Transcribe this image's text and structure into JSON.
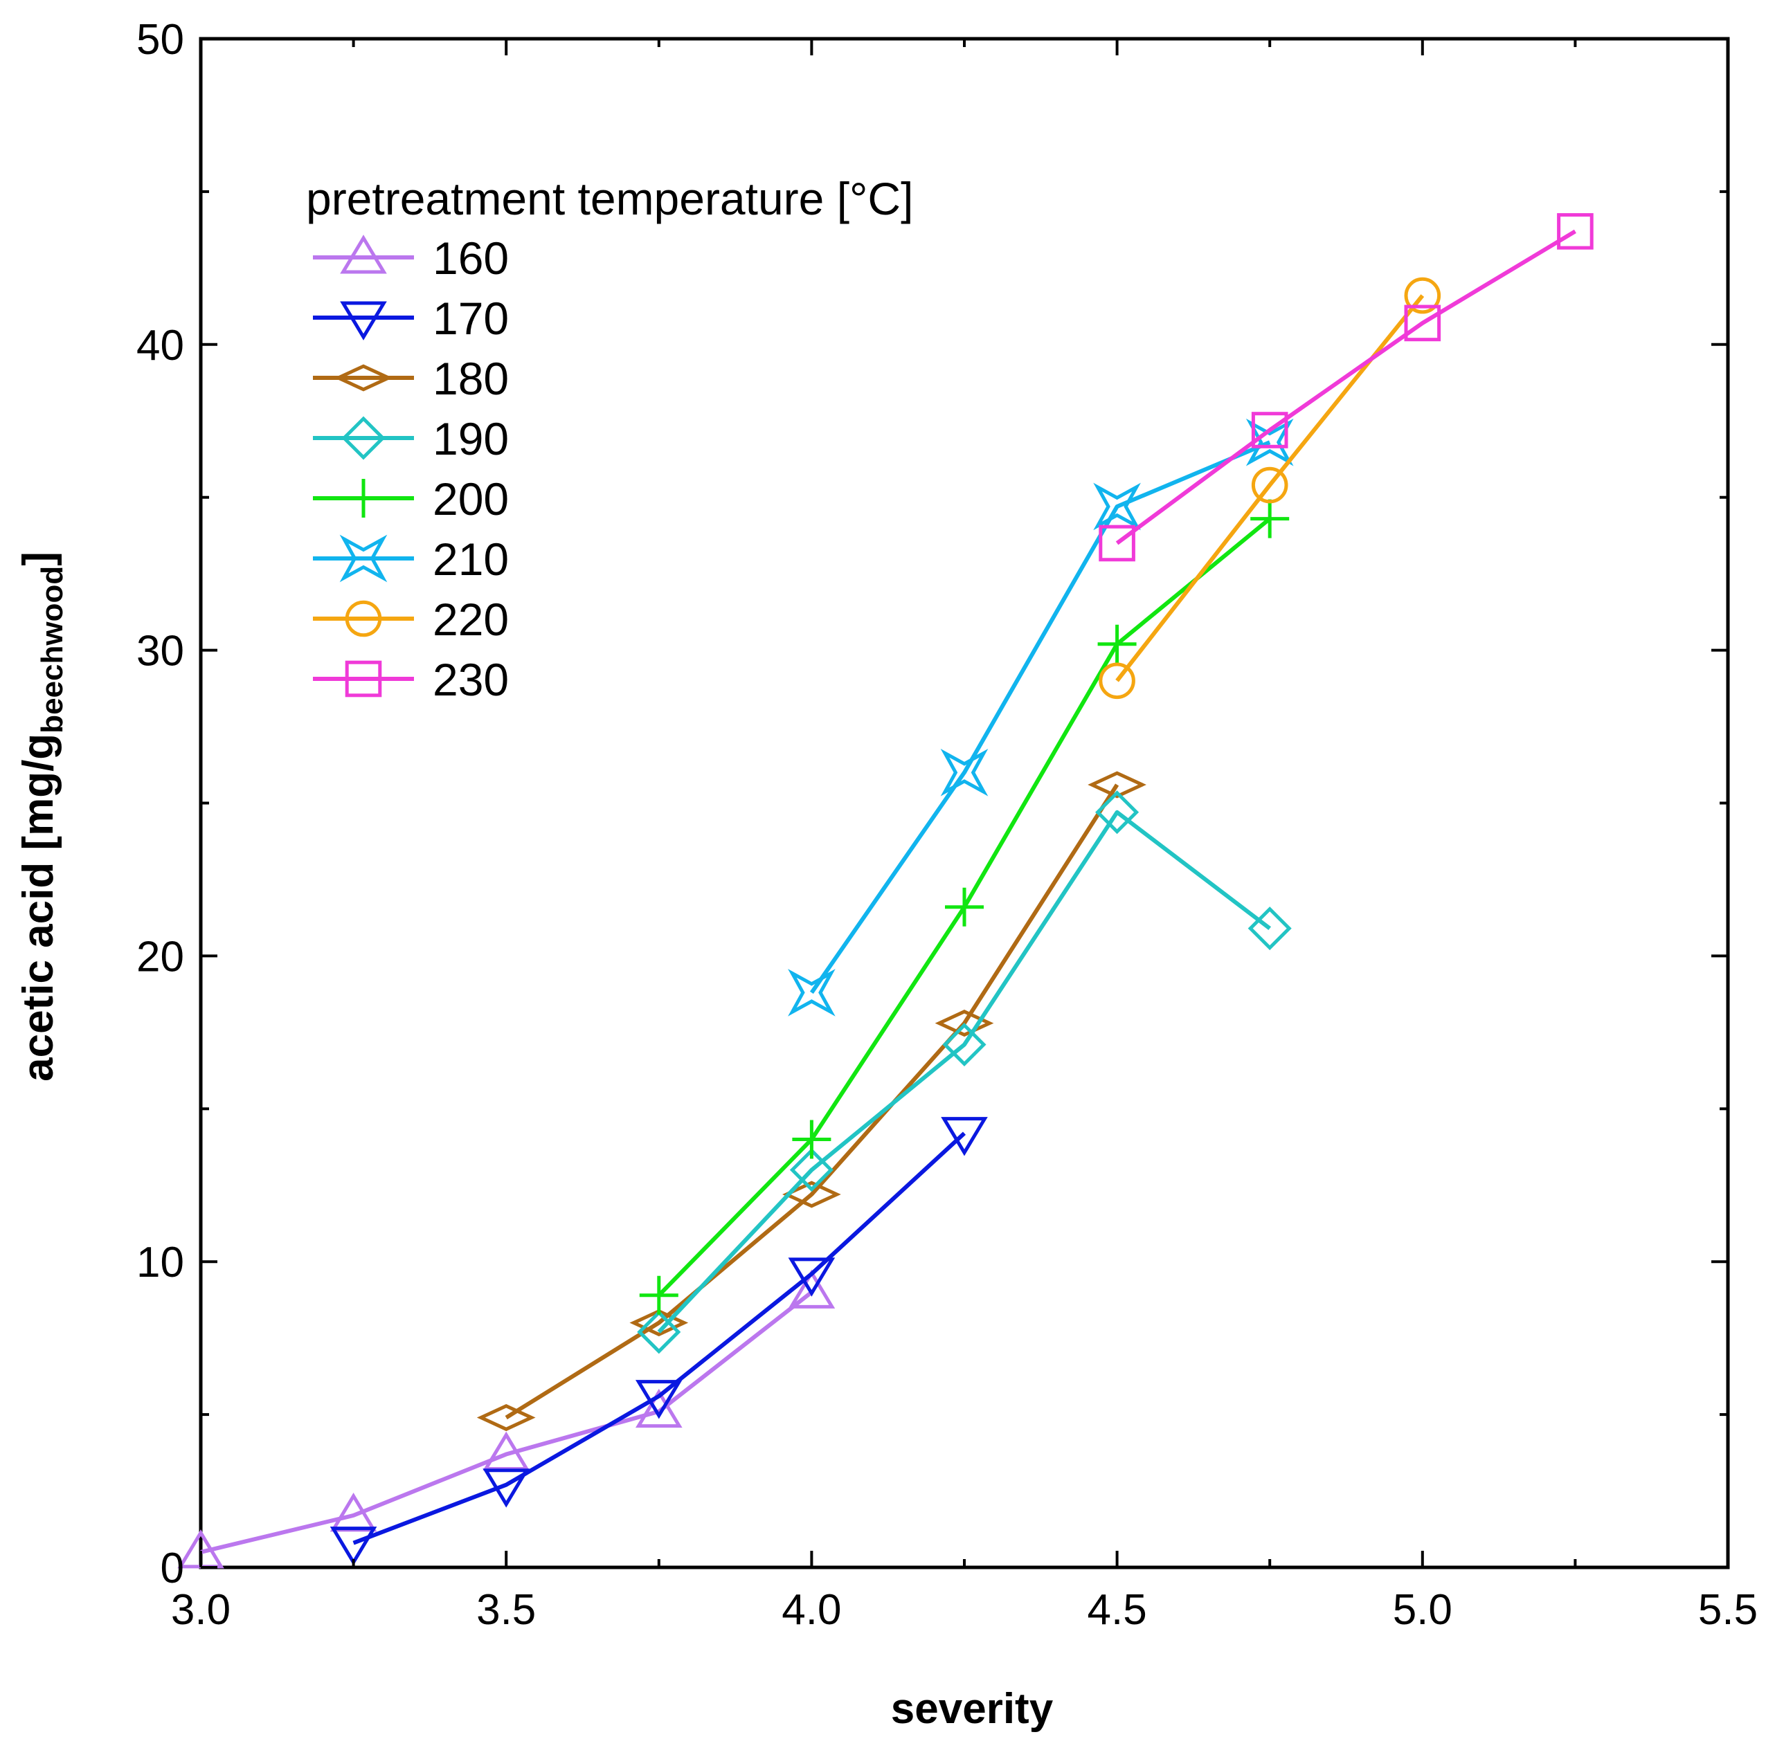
{
  "chart_data": {
    "type": "line",
    "title": "",
    "xlabel": "severity",
    "ylabel_main": "acetic acid  [mg/g",
    "ylabel_sub": "beechwood",
    "ylabel_close": "]",
    "xlim": [
      3.0,
      5.5
    ],
    "ylim": [
      0,
      50
    ],
    "xticks": [
      3.0,
      3.5,
      4.0,
      4.5,
      5.0,
      5.5
    ],
    "xtick_labels": [
      "3.0",
      "3.5",
      "4.0",
      "4.5",
      "5.0",
      "5.5"
    ],
    "yticks": [
      0,
      10,
      20,
      30,
      40,
      50
    ],
    "ytick_labels": [
      "0",
      "10",
      "20",
      "30",
      "40",
      "50"
    ],
    "yminor": [
      5,
      15,
      25,
      35,
      45
    ],
    "xminor": [
      3.25,
      3.75,
      4.25,
      4.75,
      5.25
    ],
    "grid": false,
    "legend_title": "pretreatment temperature [°C]",
    "legend_position": "top-left",
    "series": [
      {
        "name": "160",
        "color": "#bb77ee",
        "marker": "triangle-up",
        "x": [
          3.0,
          3.25,
          3.5,
          3.75,
          4.0
        ],
        "y": [
          0.5,
          1.7,
          3.7,
          5.1,
          9.0
        ]
      },
      {
        "name": "170",
        "color": "#0a18e0",
        "marker": "triangle-down",
        "x": [
          3.25,
          3.5,
          3.75,
          4.0,
          4.25
        ],
        "y": [
          0.8,
          2.7,
          5.6,
          9.6,
          14.2
        ]
      },
      {
        "name": "180",
        "color": "#b06a14",
        "marker": "diamond-flat",
        "x": [
          3.5,
          3.75,
          4.0,
          4.25,
          4.5
        ],
        "y": [
          4.9,
          8.0,
          12.2,
          17.8,
          25.6
        ]
      },
      {
        "name": "190",
        "color": "#22c4c4",
        "marker": "diamond",
        "x": [
          3.75,
          4.0,
          4.25,
          4.5,
          4.75
        ],
        "y": [
          7.7,
          13.0,
          17.1,
          24.7,
          20.9
        ]
      },
      {
        "name": "200",
        "color": "#11e611",
        "marker": "plus",
        "x": [
          3.75,
          4.0,
          4.25,
          4.5,
          4.75
        ],
        "y": [
          8.9,
          14.0,
          21.6,
          30.2,
          34.3
        ]
      },
      {
        "name": "210",
        "color": "#11b4ee",
        "marker": "star4",
        "x": [
          4.0,
          4.25,
          4.5,
          4.75
        ],
        "y": [
          18.8,
          26.0,
          34.7,
          36.8
        ]
      },
      {
        "name": "220",
        "color": "#f5a611",
        "marker": "circle",
        "x": [
          4.5,
          4.75,
          5.0
        ],
        "y": [
          29.0,
          35.4,
          41.6
        ]
      },
      {
        "name": "230",
        "color": "#f03ad8",
        "marker": "square",
        "x": [
          4.5,
          4.75,
          5.0,
          5.25
        ],
        "y": [
          33.5,
          37.2,
          40.7,
          43.7
        ]
      }
    ]
  }
}
